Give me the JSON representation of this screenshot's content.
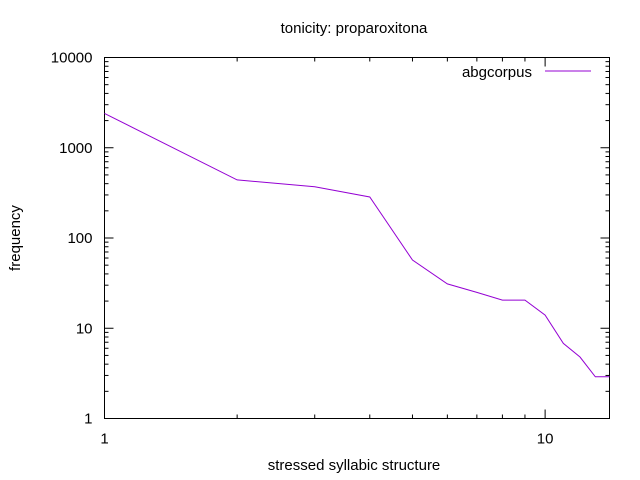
{
  "chart_data": {
    "type": "line",
    "title": "tonicity: proparoxitona",
    "xlabel": "stressed syllabic structure",
    "ylabel": "frequency",
    "xscale": "log",
    "yscale": "log",
    "xlim": [
      1,
      14
    ],
    "ylim": [
      1,
      10000
    ],
    "x_ticks": [
      "1",
      "10"
    ],
    "y_ticks": [
      "1",
      "10",
      "100",
      "1000",
      "10000"
    ],
    "legend_position": "top-right",
    "grid": false,
    "series": [
      {
        "name": "abgcorpus",
        "color": "#9400d3",
        "x": [
          1,
          2,
          3,
          4,
          5,
          6,
          7,
          8,
          9,
          10,
          11,
          12,
          13,
          14
        ],
        "y": [
          2400,
          440,
          370,
          285,
          57,
          31,
          25,
          20.5,
          20.5,
          14,
          6.8,
          4.8,
          2.9,
          2.9
        ]
      }
    ]
  }
}
